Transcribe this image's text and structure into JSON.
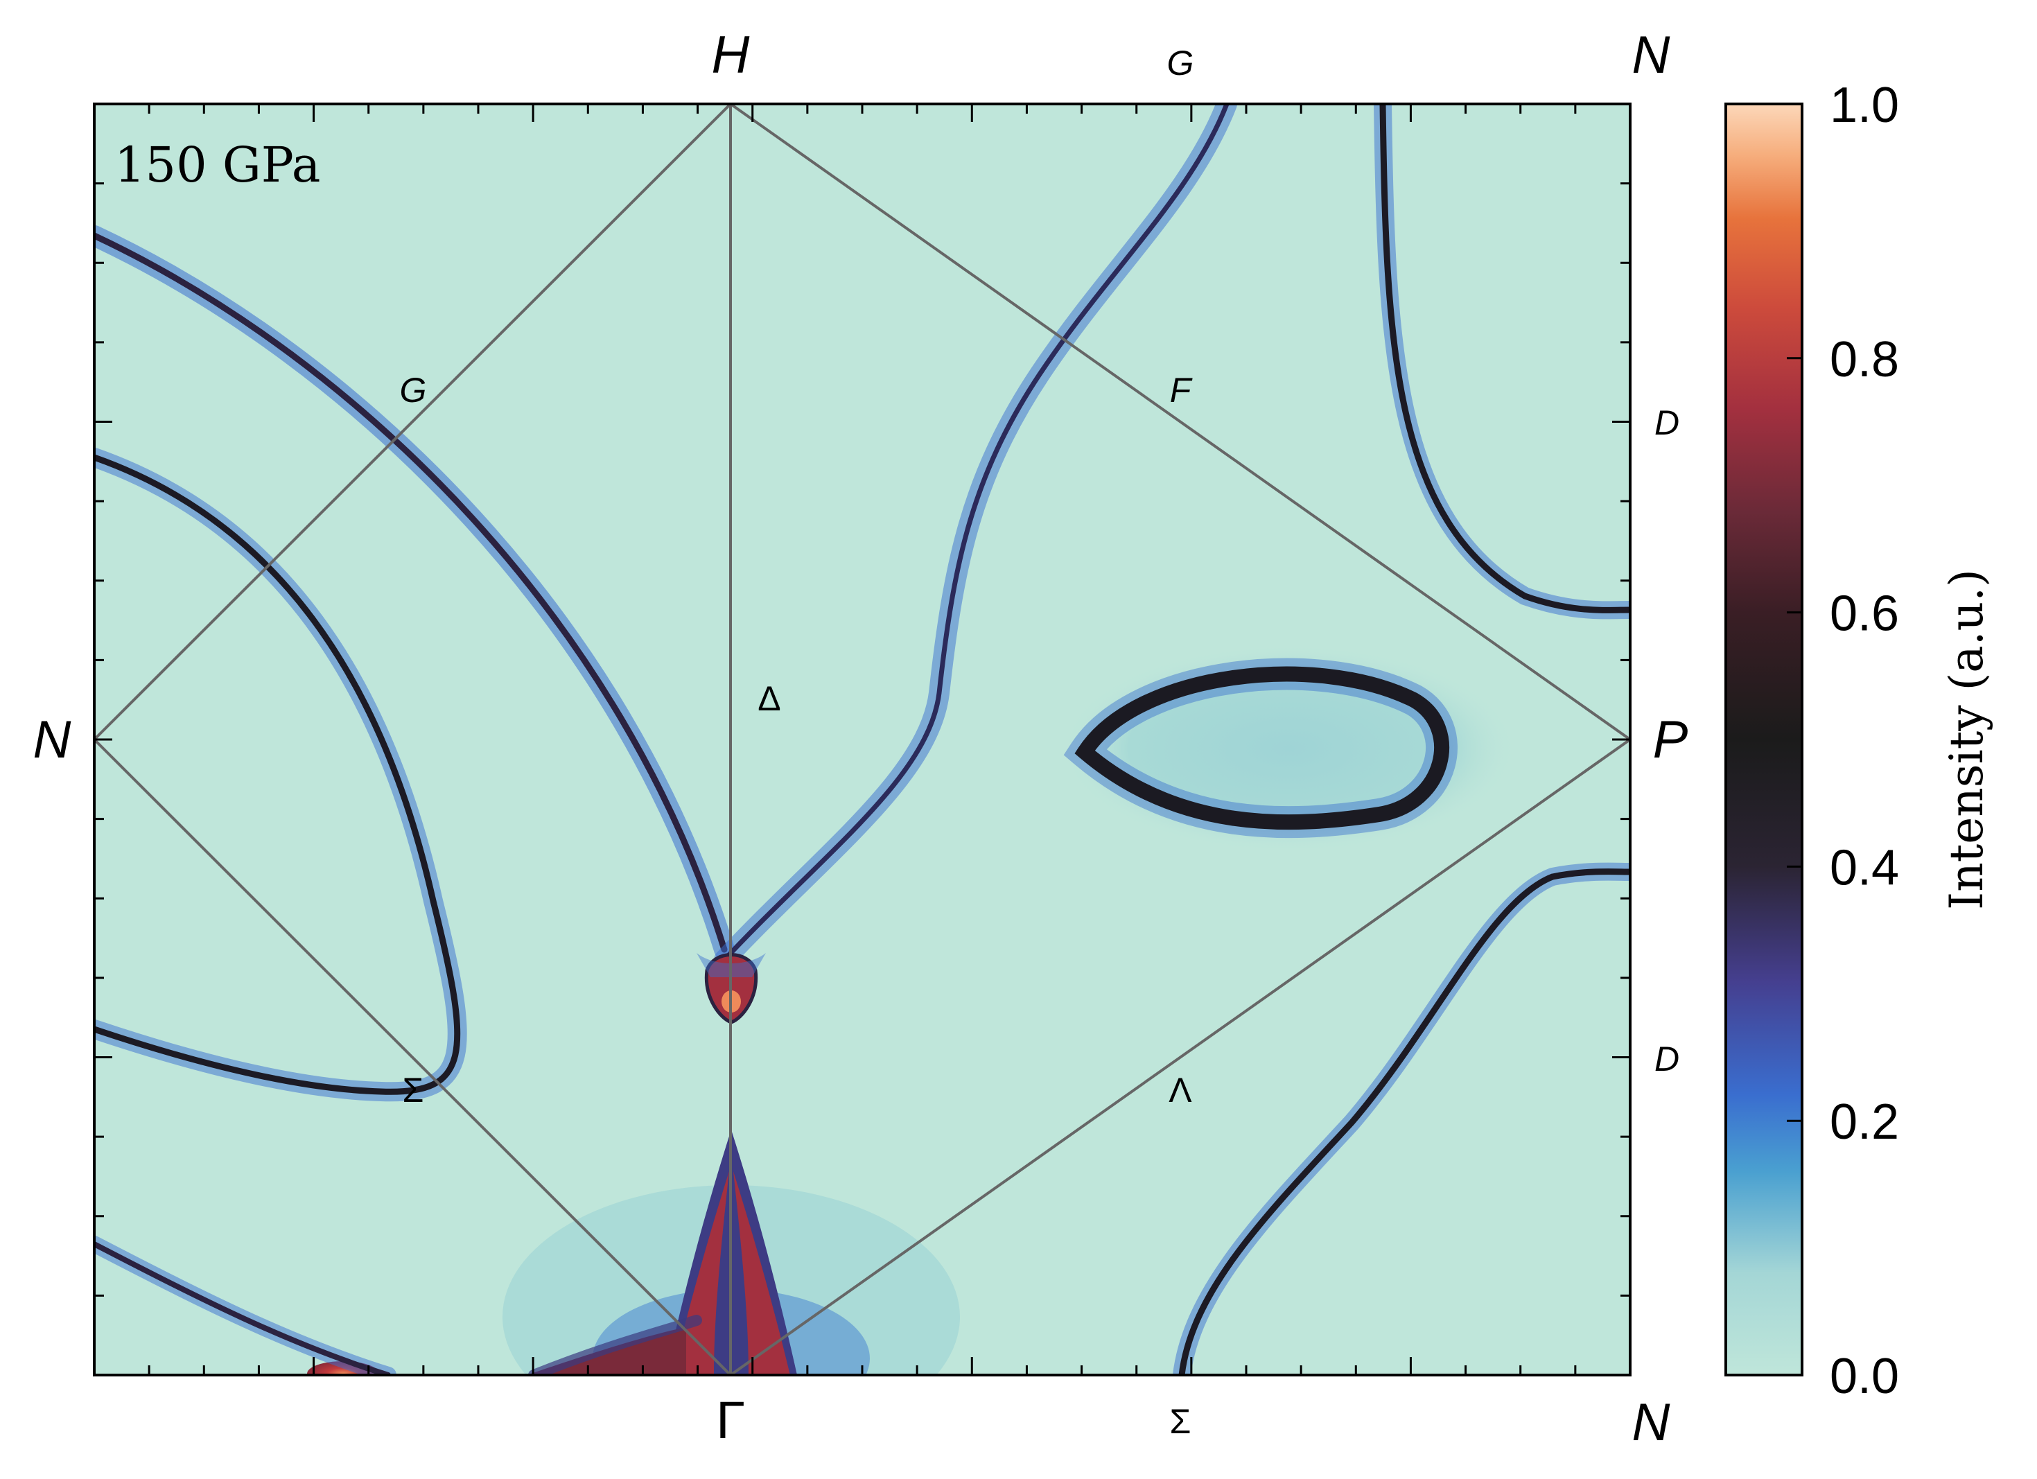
{
  "chart_data": {
    "type": "heatmap",
    "annotation": "150 GPa",
    "colorbar": {
      "label": "Intensity (a.u.)",
      "range": [
        0,
        1
      ],
      "ticks": [
        "0.0",
        "0.2",
        "0.4",
        "0.6",
        "0.8",
        "1.0"
      ],
      "colormap": [
        "#bfe6da",
        "#a4d6d6",
        "#4aa0d0",
        "#3a6ecf",
        "#453f8f",
        "#2b2433",
        "#1b1b1b",
        "#5a2735",
        "#a3303f",
        "#cd4b3c",
        "#e7733c",
        "#f6ae7d",
        "#fcd7b9"
      ]
    },
    "background_color": "#bfe6da",
    "high_symmetry_labels": {
      "top": [
        "H",
        "G",
        "N"
      ],
      "left": "N",
      "right": [
        "D",
        "P",
        "D"
      ],
      "bottom": [
        "Γ",
        "Σ",
        "N"
      ],
      "interior": [
        "G",
        "F",
        "Δ",
        "Σ",
        "Λ"
      ]
    },
    "brillouin_zone_line_color": "#666666"
  }
}
